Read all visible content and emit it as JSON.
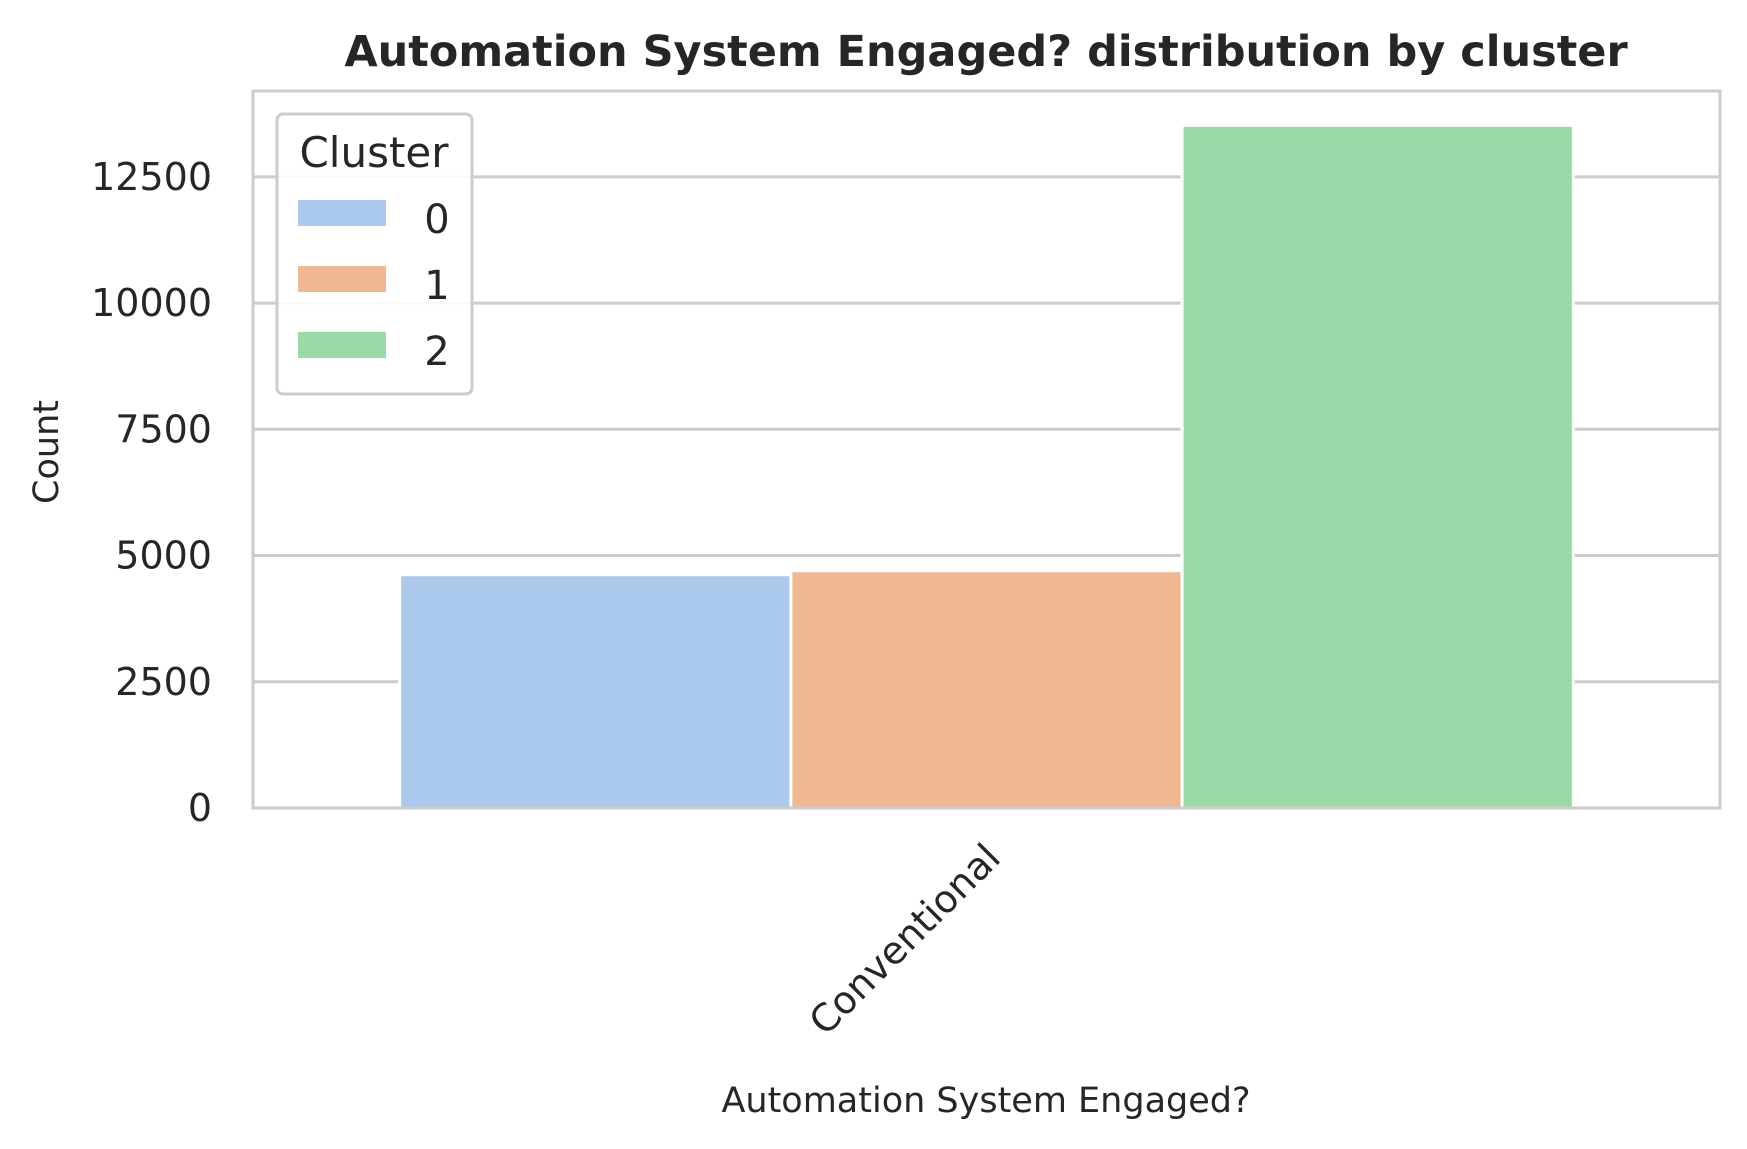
{
  "chart_data": {
    "type": "bar",
    "title": "Automation System Engaged? distribution by cluster",
    "xlabel": "Automation System Engaged?",
    "ylabel": "Count",
    "categories": [
      "Conventional"
    ],
    "series": [
      {
        "name": "0",
        "values": [
          4620
        ],
        "color": "#abc9ec"
      },
      {
        "name": "1",
        "values": [
          4700
        ],
        "color": "#f0b793"
      },
      {
        "name": "2",
        "values": [
          13520
        ],
        "color": "#98d9a6"
      }
    ],
    "ylim": [
      0,
      14200
    ],
    "yticks": [
      0,
      2500,
      5000,
      7500,
      10000,
      12500
    ],
    "ytick_labels": [
      "0",
      "2500",
      "5000",
      "7500",
      "10000",
      "12500"
    ],
    "grid": true,
    "legend": {
      "title": "Cluster",
      "position": "top-left"
    },
    "colors": {
      "grid": "#cccccc",
      "frame": "#cccccc",
      "text": "#262626"
    }
  }
}
